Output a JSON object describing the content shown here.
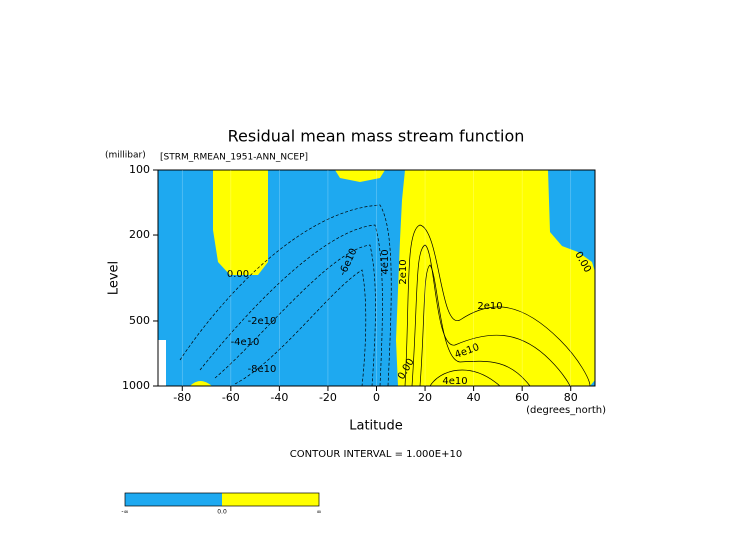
{
  "chart_data": {
    "type": "contour",
    "title": "Residual mean mass stream function",
    "subtitle": "[STRM_RMEAN_1951-ANN_NCEP]",
    "x_label": "Latitude",
    "x_unit": "(degrees_north)",
    "y_label": "Level",
    "y_unit": "(millibar)",
    "xlim": [
      -90,
      90
    ],
    "xticks": [
      -80,
      -60,
      -40,
      -20,
      0,
      20,
      40,
      60,
      80
    ],
    "ylim": [
      1000,
      100
    ],
    "yticks": [
      100,
      200,
      500,
      1000
    ],
    "y_log": true,
    "contour_interval_text": "CONTOUR INTERVAL = 1.000E+10",
    "contour_labels": [
      "0.00",
      "-2e10",
      "-4e10",
      "-6e10",
      "-8e10",
      "4e10",
      "2e10",
      "0.00",
      "2e10",
      "4e10",
      "4e10",
      "0.00"
    ],
    "negative_color": "#1ea9f0",
    "positive_color": "#ffff00",
    "colorbar_labels": [
      "-∞",
      "0.0",
      "∞"
    ]
  }
}
